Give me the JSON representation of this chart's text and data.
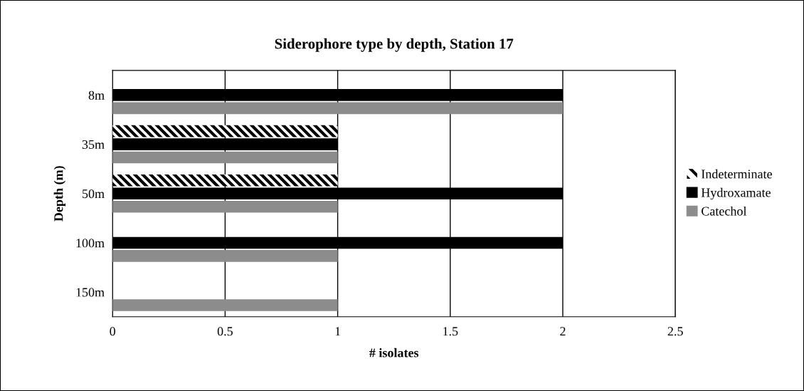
{
  "chart_data": {
    "type": "bar",
    "orientation": "horizontal",
    "title": "Siderophore type by depth, Station 17",
    "xlabel": "# isolates",
    "ylabel": "Depth (m)",
    "categories": [
      "8m",
      "35m",
      "50m",
      "100m",
      "150m"
    ],
    "series": [
      {
        "name": "Indeterminate",
        "color": "#000000",
        "line_style": "dashed",
        "values": [
          0,
          1,
          1,
          0,
          0
        ]
      },
      {
        "name": "Hydroxamate",
        "color": "#000000",
        "values": [
          2,
          1,
          2,
          2,
          0
        ]
      },
      {
        "name": "Catechol",
        "color": "#8c8c8c",
        "values": [
          2,
          1,
          1,
          1,
          1
        ]
      }
    ],
    "xlim": [
      0,
      2.5
    ],
    "xticks": [
      0,
      0.5,
      1,
      1.5,
      2,
      2.5
    ],
    "grid": "x",
    "legend": "right"
  }
}
